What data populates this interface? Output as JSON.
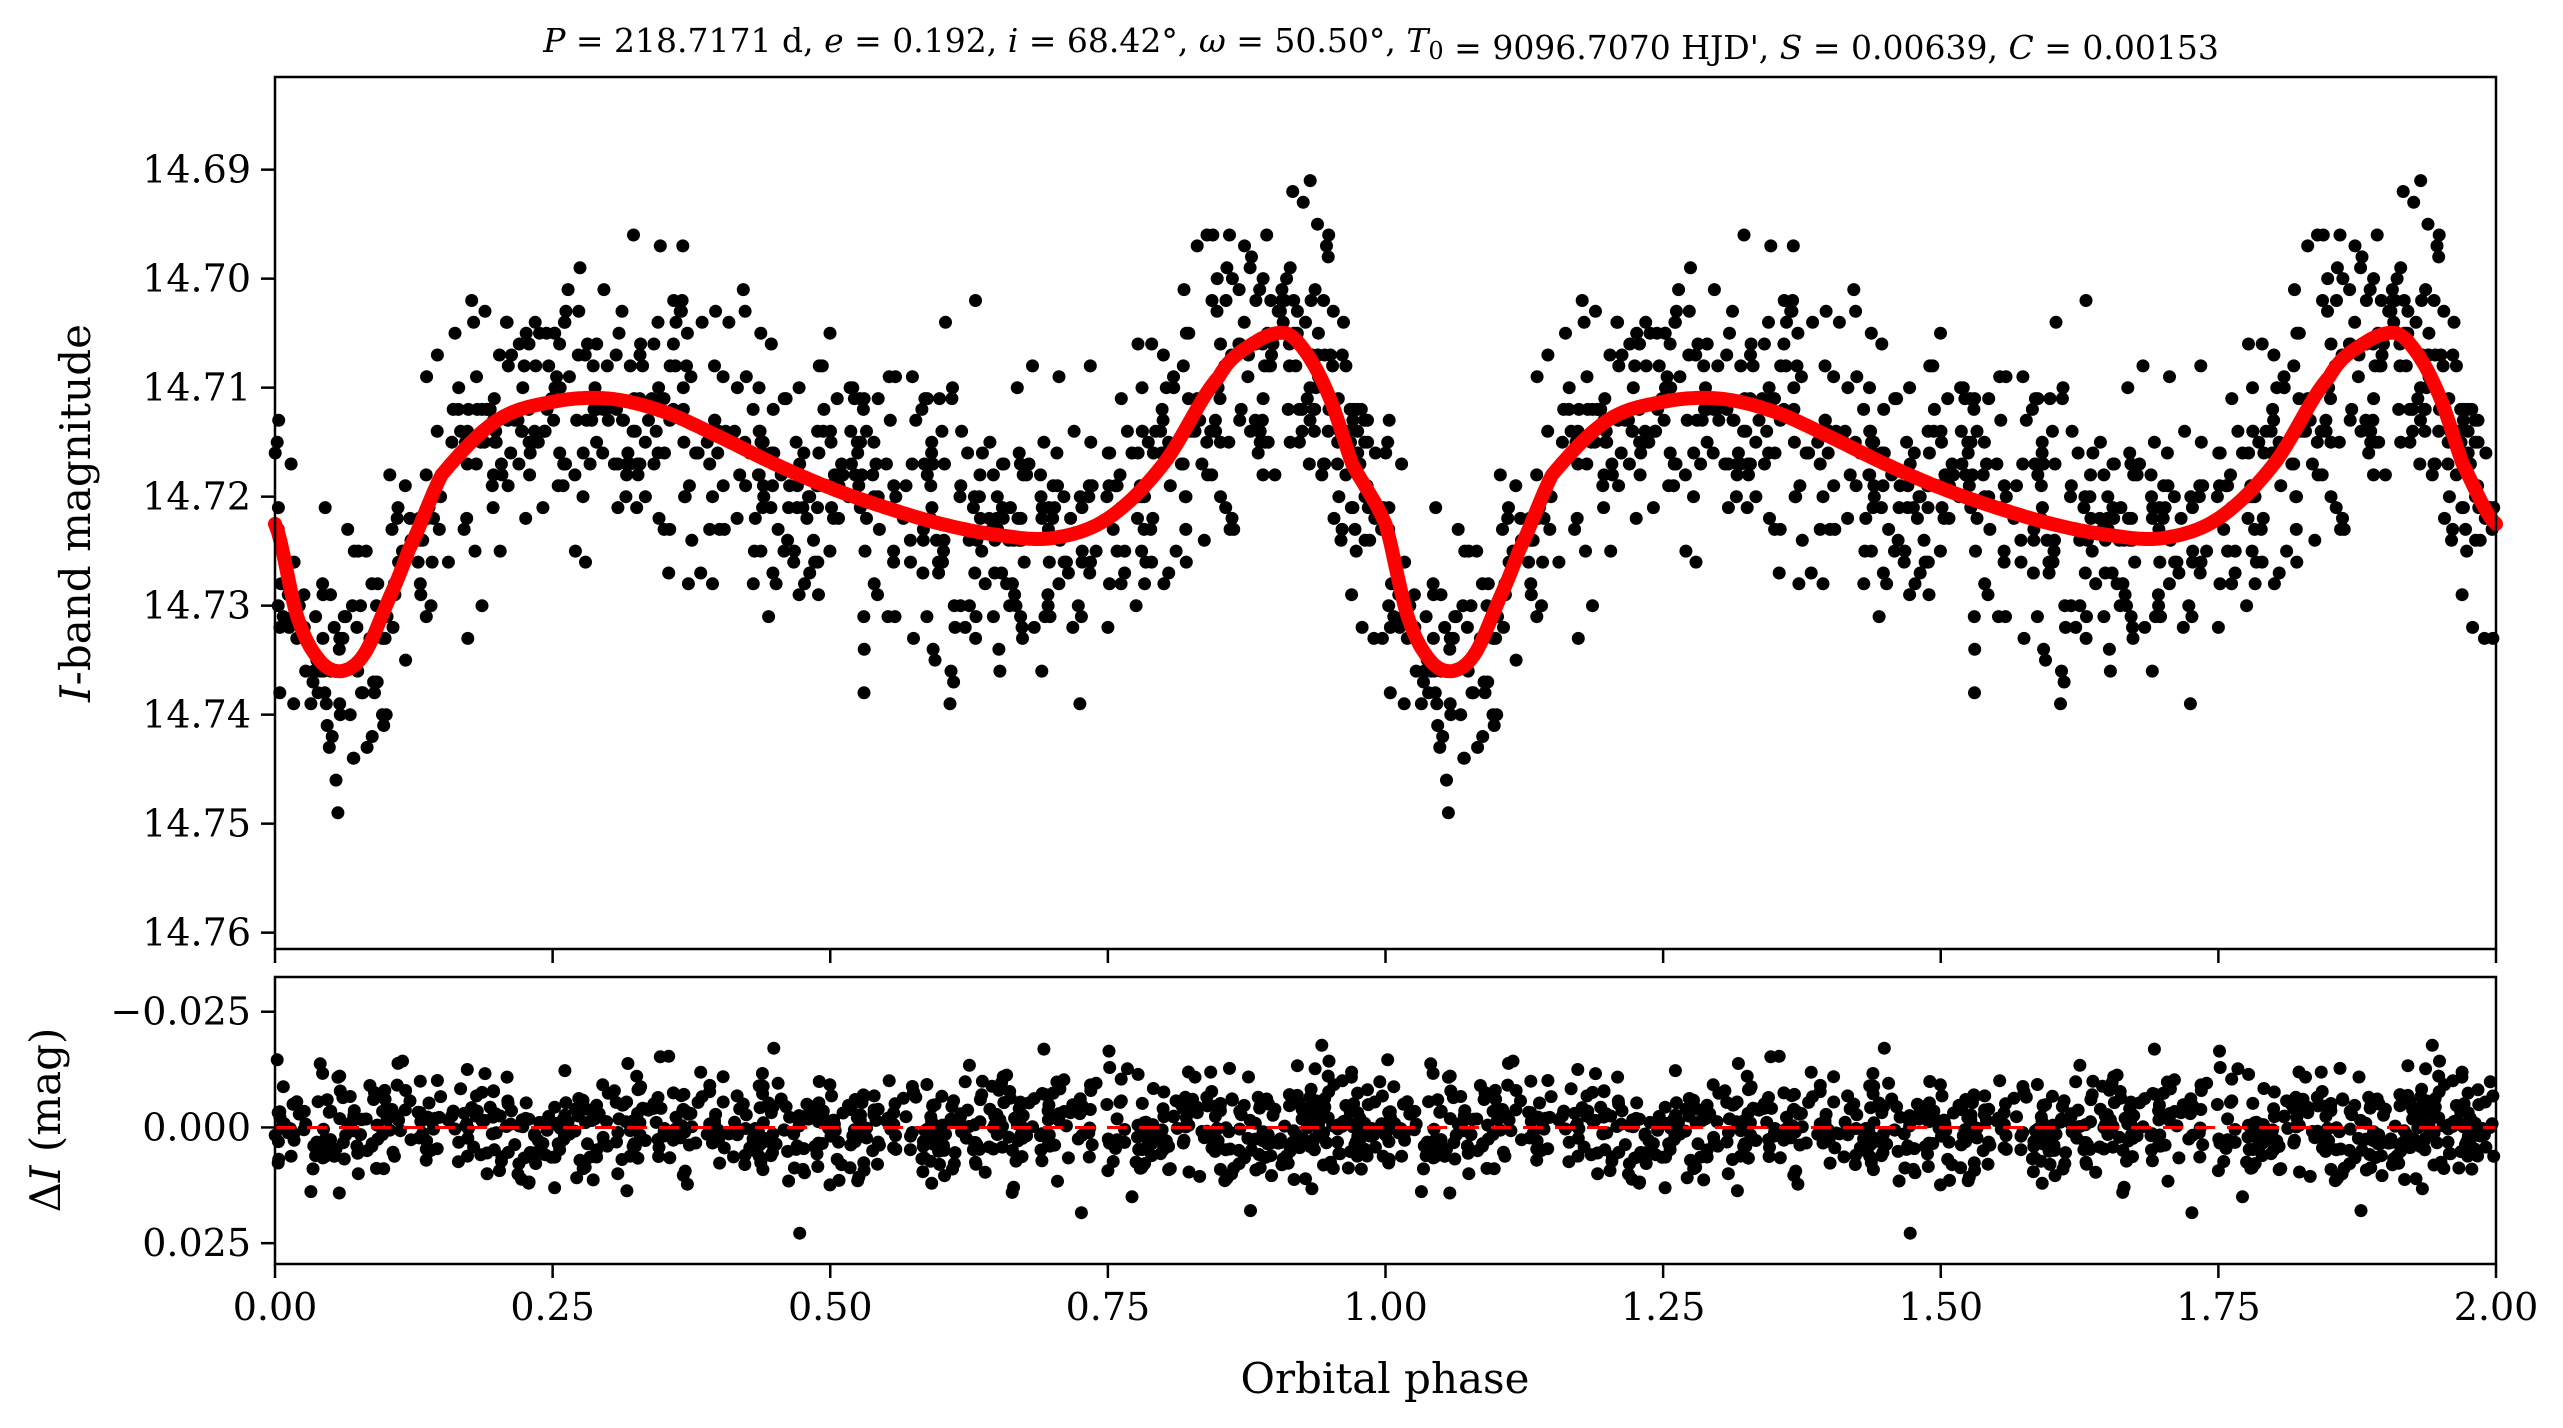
{
  "chart_data": [
    {
      "type": "scatter",
      "panel": "top",
      "title": "P = 218.7171 d, e = 0.192, i = 68.42°, ω = 50.50°, T0 = 9096.7070 HJD', S = 0.00639, C = 0.00153",
      "xlabel": "",
      "ylabel": "I-band magnitude",
      "xlim": [
        0.0,
        2.0
      ],
      "ylim": [
        14.7615,
        14.6815
      ],
      "y_inverted": true,
      "yticks": [
        14.69,
        14.7,
        14.71,
        14.72,
        14.73,
        14.74,
        14.75,
        14.76
      ],
      "ytick_labels": [
        "14.69",
        "14.70",
        "14.71",
        "14.72",
        "14.73",
        "14.74",
        "14.75",
        "14.76"
      ],
      "model_curve": {
        "color": "#ff0000",
        "x": [
          0.0,
          0.02,
          0.04,
          0.06,
          0.08,
          0.1,
          0.12,
          0.15,
          0.2,
          0.25,
          0.3,
          0.35,
          0.4,
          0.45,
          0.5,
          0.55,
          0.6,
          0.65,
          0.7,
          0.75,
          0.8,
          0.85,
          0.88,
          0.91,
          0.93,
          0.95,
          0.97,
          1.0,
          1.02,
          1.04,
          1.06,
          1.08,
          1.1,
          1.12,
          1.15,
          1.2,
          1.25,
          1.3,
          1.35,
          1.4,
          1.45,
          1.5,
          1.55,
          1.6,
          1.65,
          1.7,
          1.75,
          1.8,
          1.85,
          1.88,
          1.91,
          1.93,
          1.95,
          1.97,
          2.0
        ],
        "y": [
          14.7225,
          14.731,
          14.735,
          14.736,
          14.7345,
          14.73,
          14.725,
          14.718,
          14.713,
          14.7113,
          14.711,
          14.7122,
          14.7145,
          14.717,
          14.7192,
          14.721,
          14.7225,
          14.7235,
          14.7238,
          14.722,
          14.717,
          14.709,
          14.706,
          14.705,
          14.707,
          14.711,
          14.717,
          14.7225,
          14.731,
          14.735,
          14.736,
          14.7345,
          14.73,
          14.725,
          14.718,
          14.713,
          14.7113,
          14.711,
          14.7122,
          14.7145,
          14.717,
          14.7192,
          14.721,
          14.7225,
          14.7235,
          14.7238,
          14.722,
          14.717,
          14.709,
          14.706,
          14.705,
          14.707,
          14.711,
          14.717,
          14.7225
        ]
      },
      "scatter_points": {
        "color": "#000000",
        "count": 1700,
        "scatter_sigma_mag": 0.0065,
        "note_hidden": ""
      }
    },
    {
      "type": "scatter",
      "panel": "bottom",
      "title": "",
      "xlabel": "Orbital phase",
      "ylabel": "ΔI (mag)",
      "xlim": [
        0.0,
        2.0
      ],
      "ylim": [
        0.0295,
        -0.0325
      ],
      "y_inverted": true,
      "xticks": [
        0.0,
        0.25,
        0.5,
        0.75,
        1.0,
        1.25,
        1.5,
        1.75,
        2.0
      ],
      "xtick_labels": [
        "0.00",
        "0.25",
        "0.50",
        "0.75",
        "1.00",
        "1.25",
        "1.50",
        "1.75",
        "2.00"
      ],
      "yticks": [
        -0.025,
        0.0,
        0.025
      ],
      "ytick_labels": [
        "−0.025",
        "0.000",
        "0.025"
      ],
      "zero_line": {
        "y": 0.0,
        "color": "#ff0000",
        "style": "dashed"
      },
      "scatter_points": {
        "color": "#000000",
        "count": 1700,
        "scatter_sigma_mag": 0.006
      }
    }
  ]
}
